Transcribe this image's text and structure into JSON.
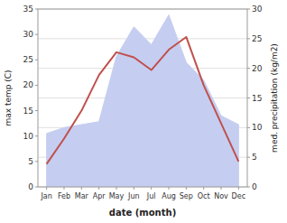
{
  "chart_data": {
    "type": "line",
    "xlabel": "date (month)",
    "ylabel": "max temp (C)",
    "y2label": "med. precipitation (kg/m2)",
    "categories": [
      "Jan",
      "Feb",
      "Mar",
      "Apr",
      "May",
      "Jun",
      "Jul",
      "Aug",
      "Sep",
      "Oct",
      "Nov",
      "Dec"
    ],
    "series": [
      {
        "type": "line",
        "color": "#c0504d",
        "values": [
          4.5,
          9.5,
          15.0,
          22.0,
          26.5,
          25.5,
          23.0,
          27.0,
          29.5,
          20.0,
          12.5,
          5.0
        ]
      },
      {
        "type": "area",
        "axis": "y2",
        "color": "#c5cef0",
        "values": [
          9.0,
          10.0,
          10.5,
          11.0,
          22.0,
          27.0,
          24.0,
          29.0,
          21.0,
          18.0,
          12.0,
          10.5
        ]
      }
    ],
    "ylim": [
      0,
      35
    ],
    "yticks": [
      0,
      5,
      10,
      15,
      20,
      25,
      30,
      35
    ],
    "y2lim": [
      0,
      30
    ],
    "y2ticks": [
      0,
      5,
      10,
      15,
      20,
      25,
      30
    ],
    "grid": true
  }
}
